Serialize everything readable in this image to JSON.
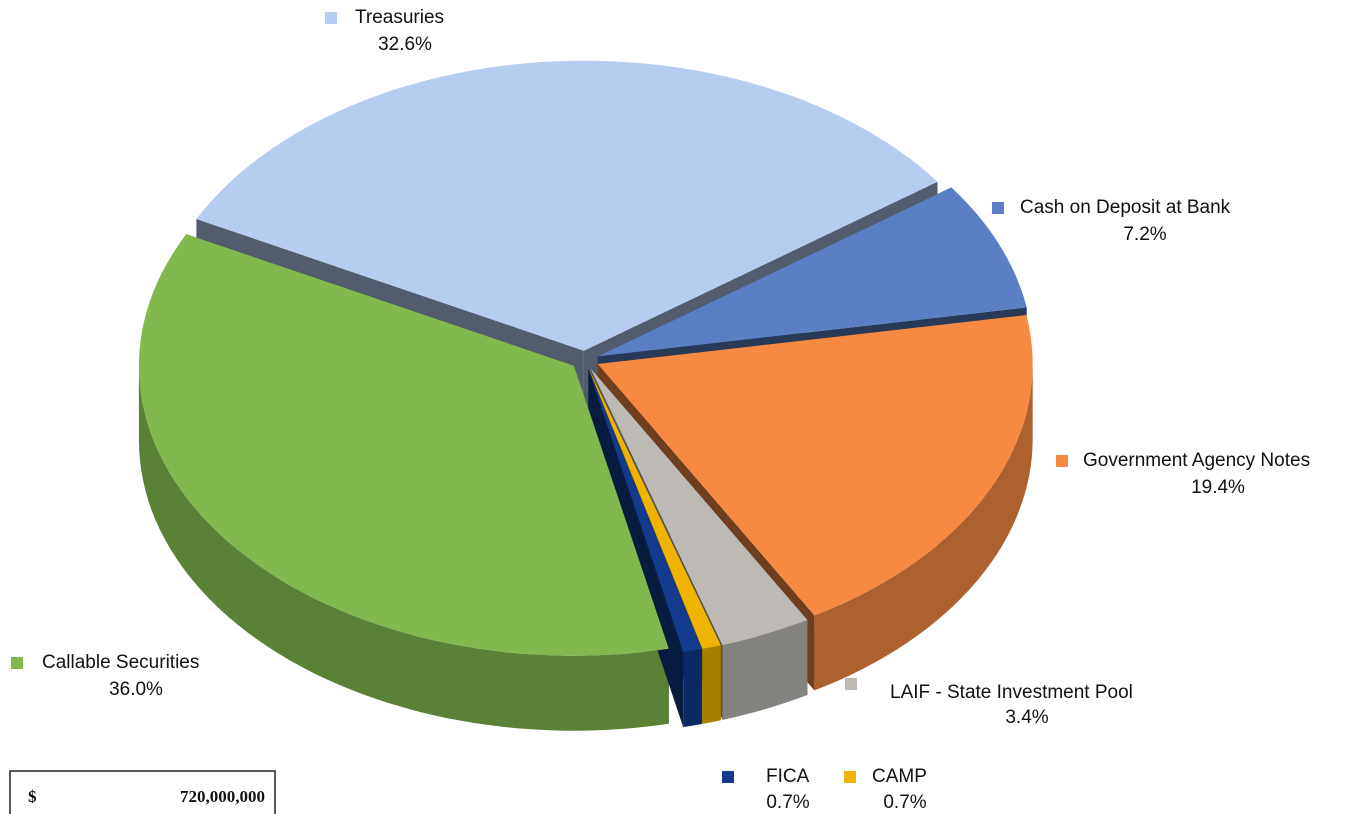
{
  "chart_data": {
    "type": "pie",
    "categories": [
      "Treasuries",
      "Cash on Deposit at Bank",
      "Government Agency Notes",
      "LAIF - State Investment Pool",
      "CAMP",
      "FICA",
      "Callable Securities"
    ],
    "values": [
      32.6,
      7.2,
      19.4,
      3.4,
      0.7,
      0.7,
      36.0
    ],
    "value_labels": [
      "32.6%",
      "7.2%",
      "19.4%",
      "3.4%",
      "0.7%",
      "0.7%",
      "36.0%"
    ],
    "colors": [
      "#b7cdef",
      "#5b7fc4",
      "#f68a43",
      "#bdbab5",
      "#f0b400",
      "#123b8e",
      "#82b84e"
    ],
    "total_currency": "$",
    "total": "720,000,000"
  }
}
